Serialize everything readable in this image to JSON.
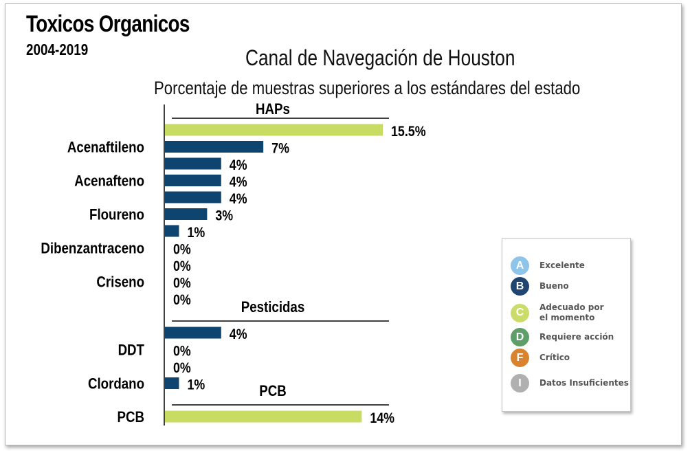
{
  "header": {
    "title": "Toxicos Organicos",
    "years": "2004-2019",
    "location": "Canal de Navegación de Houston",
    "subtitle": "Porcentaje de muestras superiores a los estándares del estado"
  },
  "chart_data": {
    "type": "bar",
    "orientation": "horizontal",
    "xlim": [
      0,
      15.5
    ],
    "groups": [
      {
        "name": "HAPs",
        "bars": [
          {
            "label": "",
            "value": 15.5,
            "value_label": "15.5%",
            "grade": "C"
          },
          {
            "label": "Acenaftileno",
            "value": 7,
            "value_label": "7%",
            "grade": "B"
          },
          {
            "label": "",
            "value": 4,
            "value_label": "4%",
            "grade": "B"
          },
          {
            "label": "Acenafteno",
            "value": 4,
            "value_label": "4%",
            "grade": "B"
          },
          {
            "label": "",
            "value": 4,
            "value_label": "4%",
            "grade": "B"
          },
          {
            "label": "Floureno",
            "value": 3,
            "value_label": "3%",
            "grade": "B"
          },
          {
            "label": "",
            "value": 1,
            "value_label": "1%",
            "grade": "B"
          },
          {
            "label": "Dibenzantraceno",
            "value": 0,
            "value_label": "0%",
            "grade": "B"
          },
          {
            "label": "",
            "value": 0,
            "value_label": "0%",
            "grade": "B"
          },
          {
            "label": "Criseno",
            "value": 0,
            "value_label": "0%",
            "grade": "B"
          },
          {
            "label": "",
            "value": 0,
            "value_label": "0%",
            "grade": "B"
          }
        ]
      },
      {
        "name": "Pesticidas",
        "bars": [
          {
            "label": "",
            "value": 4,
            "value_label": "4%",
            "grade": "B"
          },
          {
            "label": "DDT",
            "value": 0,
            "value_label": "0%",
            "grade": "B"
          },
          {
            "label": "",
            "value": 0,
            "value_label": "0%",
            "grade": "B"
          },
          {
            "label": "Clordano",
            "value": 1,
            "value_label": "1%",
            "grade": "B"
          }
        ]
      },
      {
        "name": "PCB",
        "bars": [
          {
            "label": "PCB",
            "value": 14,
            "value_label": "14%",
            "grade": "C"
          }
        ]
      }
    ]
  },
  "legend": {
    "items": [
      {
        "letter": "A",
        "label": "Excelente",
        "color": "#8ec3ea"
      },
      {
        "letter": "B",
        "label": "Bueno",
        "color": "#1f4570"
      },
      {
        "letter": "C",
        "label": "Adecuado por\nel momento",
        "color": "#cbdc69"
      },
      {
        "letter": "D",
        "label": "Requiere acción",
        "color": "#5e9e68"
      },
      {
        "letter": "F",
        "label": "Crítico",
        "color": "#d9832e"
      },
      {
        "letter": "I",
        "label": "Datos Insuficientes",
        "color": "#b0b0b0"
      }
    ]
  },
  "colors": {
    "B": "#0e4470",
    "C": "#c8dc63"
  }
}
